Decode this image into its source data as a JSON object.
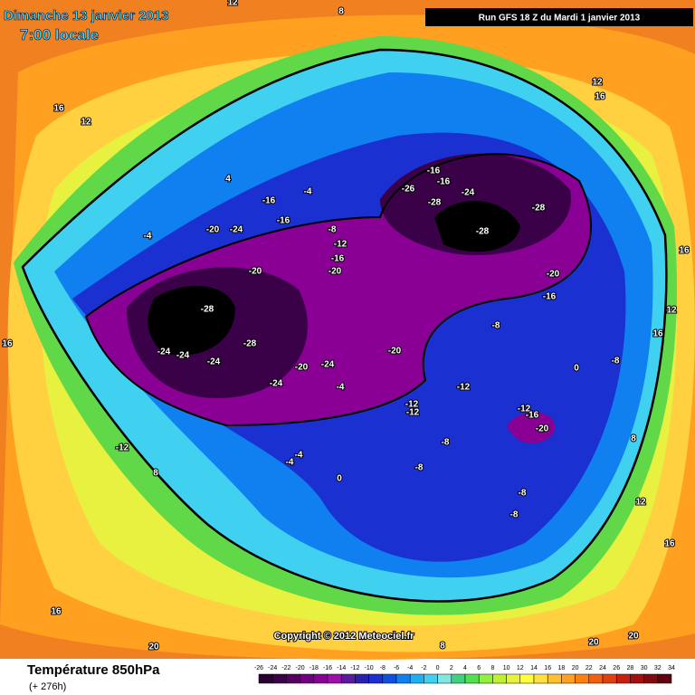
{
  "header": {
    "title": "Dimanche 13 janvier 2013",
    "time": "7:00 locale",
    "run": "Run GFS 18 Z du Mardi 1 janvier 2013"
  },
  "copyright": "Copyright © 2012 Meteociel.fr",
  "footer": {
    "variable": "Température 850hPa",
    "lead": "(+ 276h)"
  },
  "legend": {
    "ticks": [
      -26,
      -24,
      -22,
      -20,
      -18,
      -16,
      -14,
      -12,
      -10,
      -8,
      -6,
      -4,
      -2,
      0,
      2,
      4,
      6,
      8,
      10,
      12,
      14,
      16,
      18,
      20,
      22,
      24,
      26,
      28,
      30,
      32,
      34
    ],
    "colors": [
      "#2a0030",
      "#3a0048",
      "#550060",
      "#700080",
      "#8a0095",
      "#9a10a8",
      "#5a1aa0",
      "#2a20b0",
      "#1a30d0",
      "#1050e0",
      "#1080f0",
      "#20b0f0",
      "#40d0f0",
      "#80e8e0",
      "#40d080",
      "#50e050",
      "#90f040",
      "#c0f030",
      "#e8f040",
      "#ffff40",
      "#ffe040",
      "#ffc030",
      "#ffa020",
      "#ff8010",
      "#f06010",
      "#e04010",
      "#c82010",
      "#a01010",
      "#800a10",
      "#600010"
    ]
  },
  "map_labels": [
    16,
    12,
    4,
    -4,
    -16,
    -16,
    -20,
    -24,
    -4,
    -8,
    -12,
    -16,
    -20,
    -20,
    -28,
    -28,
    -24,
    -24,
    -24,
    -20,
    -24,
    -24,
    -4,
    -20,
    -16,
    -16,
    -26,
    -24,
    -28,
    -28,
    -28,
    -20,
    -16,
    -8,
    0,
    -8,
    -12,
    -12,
    -12,
    -12,
    -16,
    -20,
    -8,
    -8,
    -4,
    -4,
    0,
    -8,
    -8,
    -12,
    8,
    12,
    16,
    16,
    20,
    20,
    12,
    16,
    16,
    16,
    12,
    16,
    8,
    12,
    8,
    20,
    8
  ]
}
